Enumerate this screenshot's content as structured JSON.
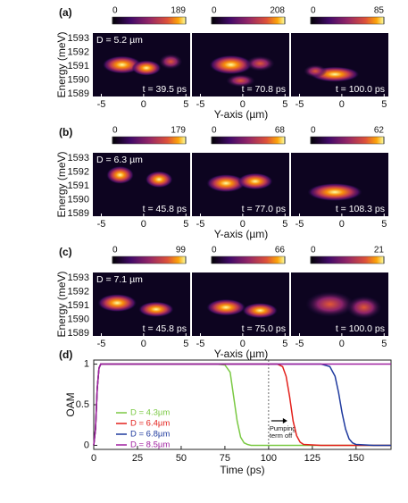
{
  "panels": [
    {
      "label": "(a)",
      "D": "D = 5.2 µm",
      "ylabel": "Energy (meV)",
      "xlabel": "Y-axis (µm)",
      "ylim": [
        1588.8,
        1593.4
      ],
      "yticks": [
        1589,
        1590,
        1591,
        1592,
        1593
      ],
      "xlim": [
        -6,
        5.5
      ],
      "xticks": [
        -5,
        0,
        5
      ],
      "maps": [
        {
          "cbar": [
            0,
            189
          ],
          "time": "t = 39.5 ps"
        },
        {
          "cbar": [
            0,
            208
          ],
          "time": "t = 70.8 ps"
        },
        {
          "cbar": [
            0,
            85
          ],
          "time": "t = 100.0 ps"
        }
      ]
    },
    {
      "label": "(b)",
      "D": "D = 6.3 µm",
      "ylabel": "Energy (meV)",
      "xlabel": "Y-axis (µm)",
      "ylim": [
        1588.8,
        1593.4
      ],
      "yticks": [
        1589,
        1590,
        1591,
        1592,
        1593
      ],
      "xlim": [
        -6,
        5.5
      ],
      "xticks": [
        -5,
        0,
        5
      ],
      "maps": [
        {
          "cbar": [
            0,
            179
          ],
          "time": "t = 45.8 ps"
        },
        {
          "cbar": [
            0,
            68
          ],
          "time": "t = 77.0 ps"
        },
        {
          "cbar": [
            0,
            62
          ],
          "time": "t = 108.3 ps"
        }
      ]
    },
    {
      "label": "(c)",
      "D": "D = 7.1 µm",
      "ylabel": "Energy (meV)",
      "xlabel": "Y-axis (µm)",
      "ylim": [
        1588.8,
        1593.4
      ],
      "yticks": [
        1589,
        1590,
        1591,
        1592,
        1593
      ],
      "xlim": [
        -6,
        5.5
      ],
      "xticks": [
        -5,
        0,
        5
      ],
      "maps": [
        {
          "cbar": [
            0,
            99
          ],
          "time": "t = 45.8 ps"
        },
        {
          "cbar": [
            0,
            66
          ],
          "time": "t = 75.0 ps"
        },
        {
          "cbar": [
            0,
            21
          ],
          "time": "t = 100.0 ps"
        }
      ]
    }
  ],
  "chart_data": {
    "type": "line",
    "label": "(d)",
    "xlabel": "Time (ps)",
    "ylabel": "OAM",
    "xlim": [
      0,
      170
    ],
    "ylim": [
      -0.05,
      1.05
    ],
    "xticks": [
      0,
      25,
      50,
      75,
      100,
      125,
      150
    ],
    "yticks": [
      0,
      0.5,
      1
    ],
    "annotation": [
      "Pumping",
      "term off"
    ],
    "annotation_x": 100,
    "x": [
      0,
      1,
      2,
      3,
      4,
      5,
      6,
      70,
      75,
      78,
      80,
      82,
      84,
      86,
      88,
      90,
      100,
      105,
      108,
      110,
      112,
      114,
      116,
      118,
      120,
      130,
      135,
      138,
      140,
      142,
      144,
      146,
      148,
      150,
      160,
      170
    ],
    "series": [
      {
        "name": "D = 4.3µm",
        "color": "#7ac943",
        "values": [
          0,
          0.2,
          0.7,
          0.95,
          1,
          1,
          1,
          1,
          0.99,
          0.9,
          0.6,
          0.3,
          0.1,
          0.03,
          0.01,
          0,
          0,
          0,
          0,
          0,
          0,
          0,
          0,
          0,
          0,
          0,
          0,
          0,
          0,
          0,
          0,
          0,
          0,
          0,
          0,
          0
        ]
      },
      {
        "name": "D = 6.4µm",
        "color": "#e3201b",
        "values": [
          0,
          0.2,
          0.7,
          0.95,
          1,
          1,
          1,
          1,
          1,
          1,
          1,
          1,
          1,
          1,
          1,
          1,
          1,
          1,
          0.97,
          0.85,
          0.6,
          0.3,
          0.12,
          0.04,
          0.01,
          0,
          0,
          0,
          0,
          0,
          0,
          0,
          0,
          0,
          0,
          0
        ]
      },
      {
        "name": "D = 6.8µm",
        "color": "#1f3a9e",
        "values": [
          0,
          0.2,
          0.7,
          0.95,
          1,
          1,
          1,
          1,
          1,
          1,
          1,
          1,
          1,
          1,
          1,
          1,
          1,
          1,
          1,
          1,
          1,
          1,
          1,
          1,
          1,
          1,
          0.97,
          0.85,
          0.65,
          0.4,
          0.2,
          0.08,
          0.03,
          0.01,
          0,
          0
        ]
      },
      {
        "name": "D = 8.5µm",
        "color": "#a020a0",
        "values": [
          0,
          0.2,
          0.7,
          0.95,
          1,
          1,
          1,
          1,
          1,
          1,
          1,
          1,
          1,
          1,
          1,
          1,
          1,
          1,
          1,
          1,
          1,
          1,
          1,
          1,
          1,
          1,
          1,
          1,
          1,
          1,
          1,
          1,
          1,
          1,
          1,
          1
        ]
      }
    ]
  }
}
